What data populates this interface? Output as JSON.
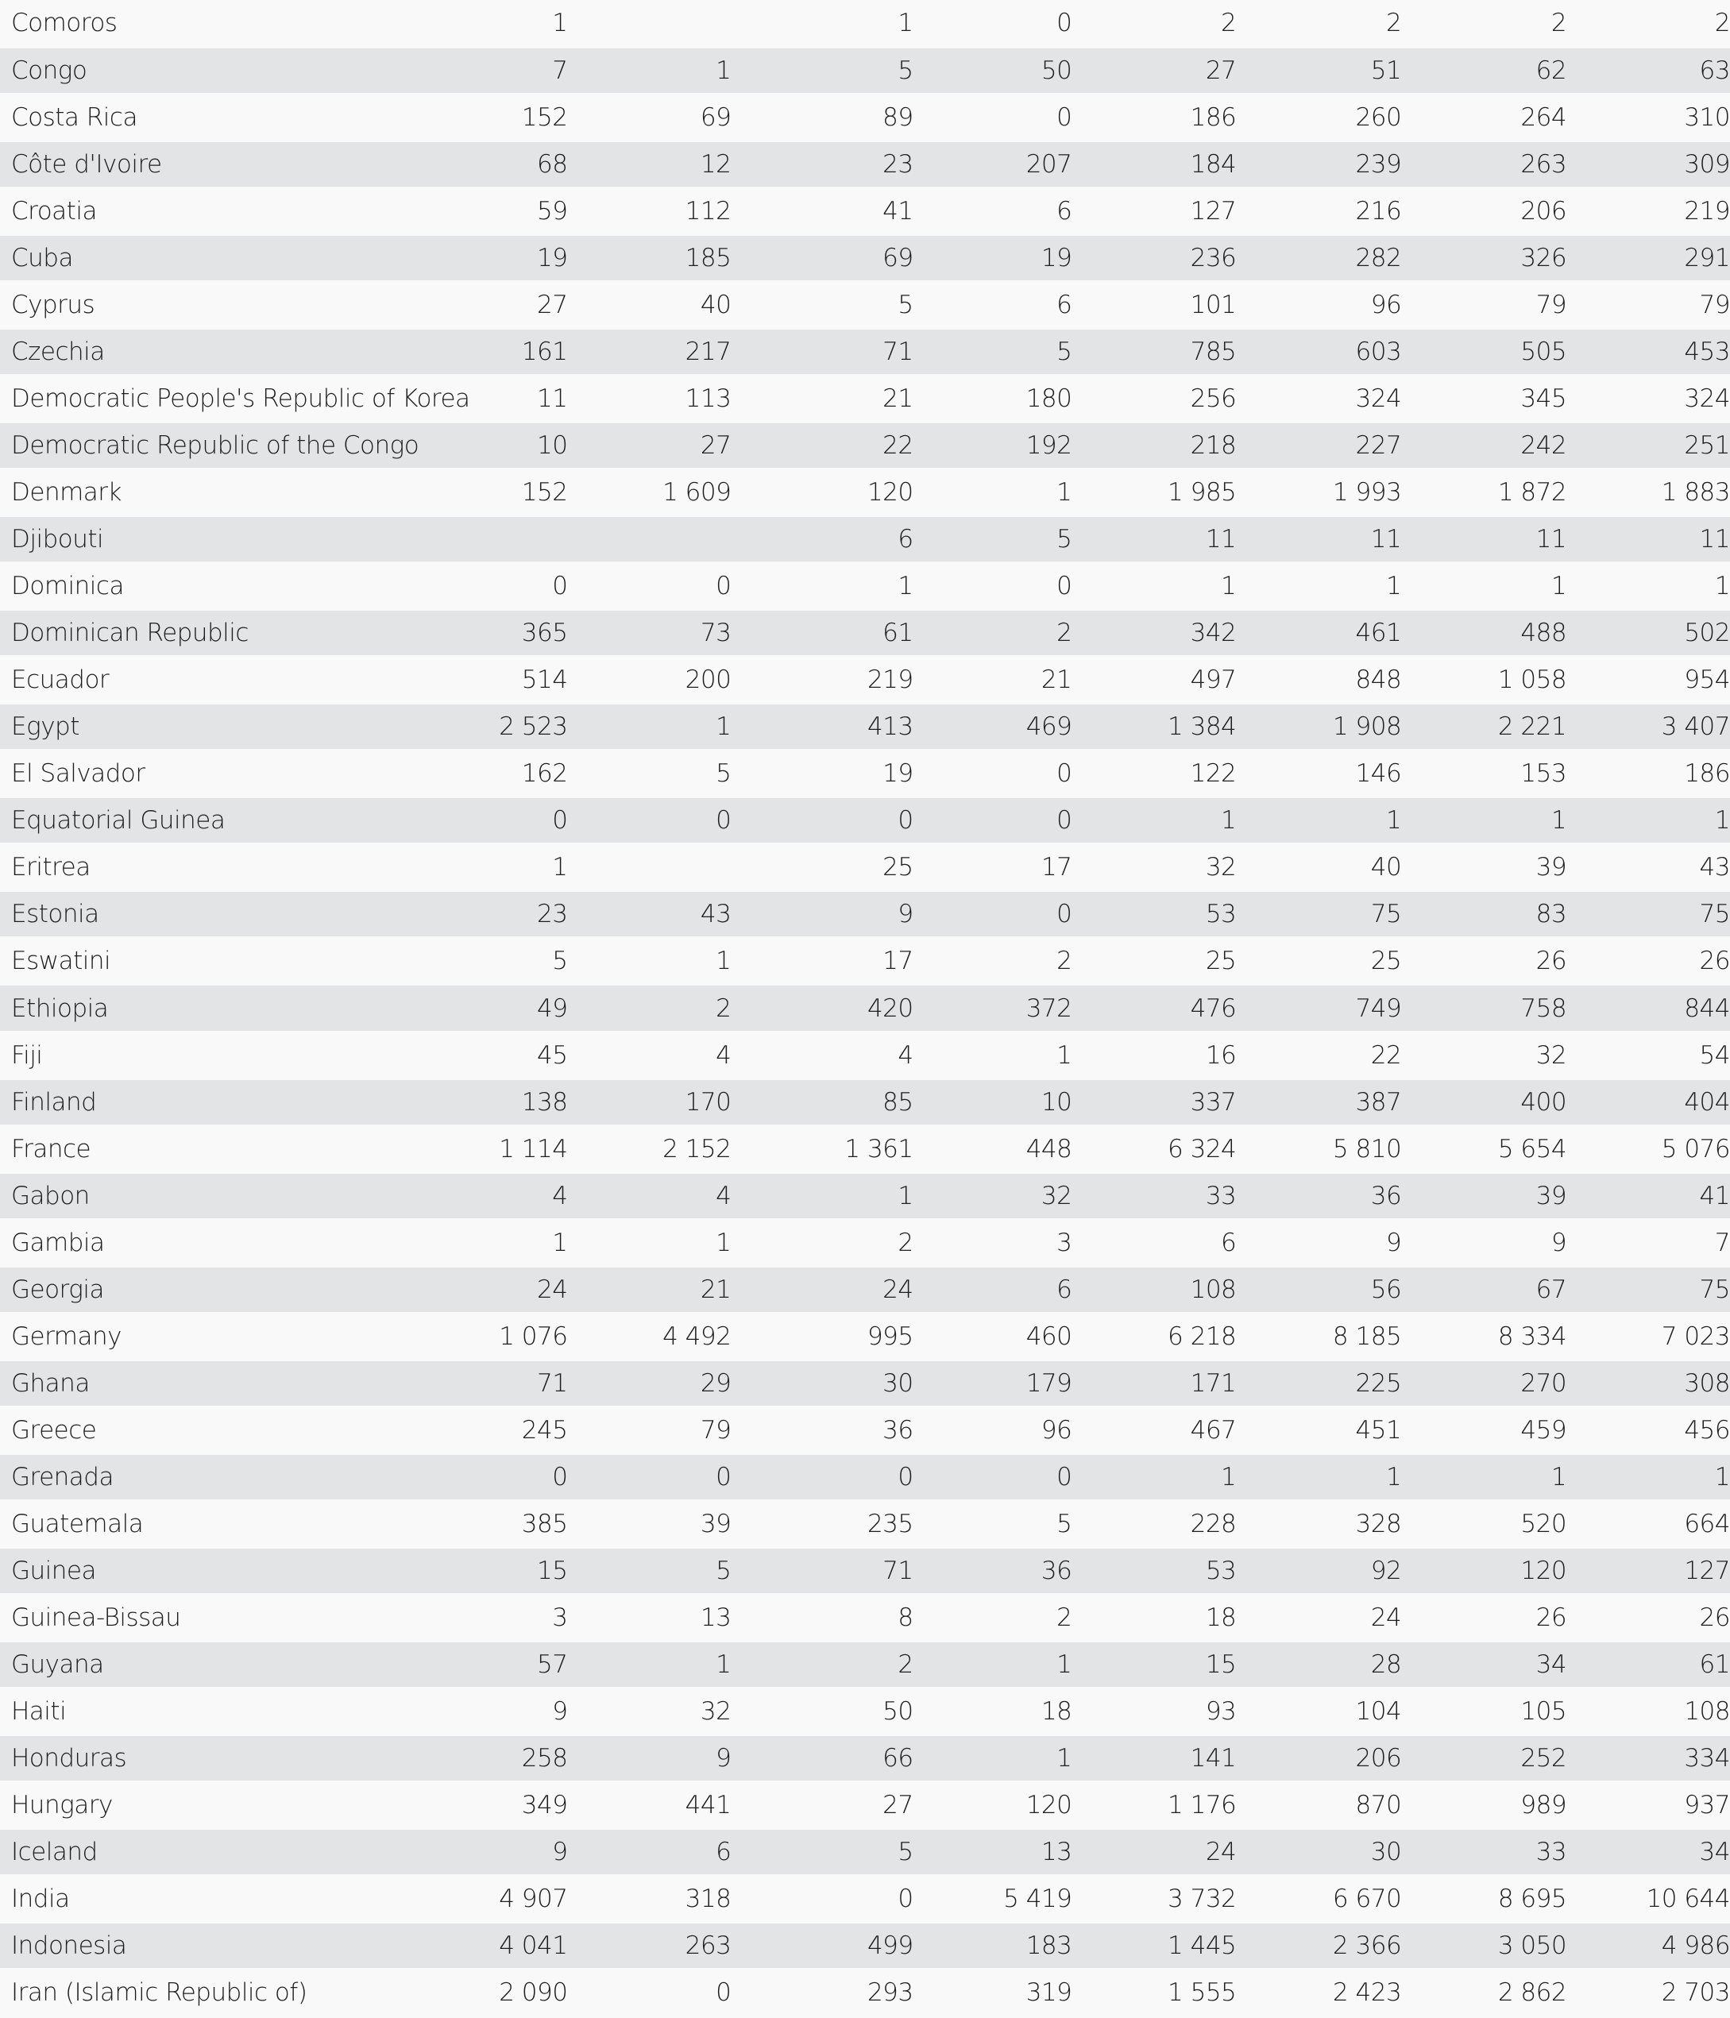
{
  "table": {
    "rows": [
      [
        "Comoros",
        "1",
        "",
        "1",
        "0",
        "2",
        "2",
        "2",
        "2"
      ],
      [
        "Congo",
        "7",
        "1",
        "5",
        "50",
        "27",
        "51",
        "62",
        "63"
      ],
      [
        "Costa Rica",
        "152",
        "69",
        "89",
        "0",
        "186",
        "260",
        "264",
        "310"
      ],
      [
        "Côte d'Ivoire",
        "68",
        "12",
        "23",
        "207",
        "184",
        "239",
        "263",
        "309"
      ],
      [
        "Croatia",
        "59",
        "112",
        "41",
        "6",
        "127",
        "216",
        "206",
        "219"
      ],
      [
        "Cuba",
        "19",
        "185",
        "69",
        "19",
        "236",
        "282",
        "326",
        "291"
      ],
      [
        "Cyprus",
        "27",
        "40",
        "5",
        "6",
        "101",
        "96",
        "79",
        "79"
      ],
      [
        "Czechia",
        "161",
        "217",
        "71",
        "5",
        "785",
        "603",
        "505",
        "453"
      ],
      [
        "Democratic People's Republic of Korea",
        "11",
        "113",
        "21",
        "180",
        "256",
        "324",
        "345",
        "324"
      ],
      [
        "Democratic Republic of the Congo",
        "10",
        "27",
        "22",
        "192",
        "218",
        "227",
        "242",
        "251"
      ],
      [
        "Denmark",
        "152",
        "1 609",
        "120",
        "1",
        "1 985",
        "1 993",
        "1 872",
        "1 883"
      ],
      [
        "Djibouti",
        "",
        "",
        "6",
        "5",
        "11",
        "11",
        "11",
        "11"
      ],
      [
        "Dominica",
        "0",
        "0",
        "1",
        "0",
        "1",
        "1",
        "1",
        "1"
      ],
      [
        "Dominican Republic",
        "365",
        "73",
        "61",
        "2",
        "342",
        "461",
        "488",
        "502"
      ],
      [
        "Ecuador",
        "514",
        "200",
        "219",
        "21",
        "497",
        "848",
        "1 058",
        "954"
      ],
      [
        "Egypt",
        "2 523",
        "1",
        "413",
        "469",
        "1 384",
        "1 908",
        "2 221",
        "3 407"
      ],
      [
        "El Salvador",
        "162",
        "5",
        "19",
        "0",
        "122",
        "146",
        "153",
        "186"
      ],
      [
        "Equatorial Guinea",
        "0",
        "0",
        "0",
        "0",
        "1",
        "1",
        "1",
        "1"
      ],
      [
        "Eritrea",
        "1",
        "",
        "25",
        "17",
        "32",
        "40",
        "39",
        "43"
      ],
      [
        "Estonia",
        "23",
        "43",
        "9",
        "0",
        "53",
        "75",
        "83",
        "75"
      ],
      [
        "Eswatini",
        "5",
        "1",
        "17",
        "2",
        "25",
        "25",
        "26",
        "26"
      ],
      [
        "Ethiopia",
        "49",
        "2",
        "420",
        "372",
        "476",
        "749",
        "758",
        "844"
      ],
      [
        "Fiji",
        "45",
        "4",
        "4",
        "1",
        "16",
        "22",
        "32",
        "54"
      ],
      [
        "Finland",
        "138",
        "170",
        "85",
        "10",
        "337",
        "387",
        "400",
        "404"
      ],
      [
        "France",
        "1 114",
        "2 152",
        "1 361",
        "448",
        "6 324",
        "5 810",
        "5 654",
        "5 076"
      ],
      [
        "Gabon",
        "4",
        "4",
        "1",
        "32",
        "33",
        "36",
        "39",
        "41"
      ],
      [
        "Gambia",
        "1",
        "1",
        "2",
        "3",
        "6",
        "9",
        "9",
        "7"
      ],
      [
        "Georgia",
        "24",
        "21",
        "24",
        "6",
        "108",
        "56",
        "67",
        "75"
      ],
      [
        "Germany",
        "1 076",
        "4 492",
        "995",
        "460",
        "6 218",
        "8 185",
        "8 334",
        "7 023"
      ],
      [
        "Ghana",
        "71",
        "29",
        "30",
        "179",
        "171",
        "225",
        "270",
        "308"
      ],
      [
        "Greece",
        "245",
        "79",
        "36",
        "96",
        "467",
        "451",
        "459",
        "456"
      ],
      [
        "Grenada",
        "0",
        "0",
        "0",
        "0",
        "1",
        "1",
        "1",
        "1"
      ],
      [
        "Guatemala",
        "385",
        "39",
        "235",
        "5",
        "228",
        "328",
        "520",
        "664"
      ],
      [
        "Guinea",
        "15",
        "5",
        "71",
        "36",
        "53",
        "92",
        "120",
        "127"
      ],
      [
        "Guinea-Bissau",
        "3",
        "13",
        "8",
        "2",
        "18",
        "24",
        "26",
        "26"
      ],
      [
        "Guyana",
        "57",
        "1",
        "2",
        "1",
        "15",
        "28",
        "34",
        "61"
      ],
      [
        "Haiti",
        "9",
        "32",
        "50",
        "18",
        "93",
        "104",
        "105",
        "108"
      ],
      [
        "Honduras",
        "258",
        "9",
        "66",
        "1",
        "141",
        "206",
        "252",
        "334"
      ],
      [
        "Hungary",
        "349",
        "441",
        "27",
        "120",
        "1 176",
        "870",
        "989",
        "937"
      ],
      [
        "Iceland",
        "9",
        "6",
        "5",
        "13",
        "24",
        "30",
        "33",
        "34"
      ],
      [
        "India",
        "4 907",
        "318",
        "0",
        "5 419",
        "3 732",
        "6 670",
        "8 695",
        "10 644"
      ],
      [
        "Indonesia",
        "4 041",
        "263",
        "499",
        "183",
        "1 445",
        "2 366",
        "3 050",
        "4 986"
      ],
      [
        "Iran (Islamic Republic of)",
        "2 090",
        "0",
        "293",
        "319",
        "1 555",
        "2 423",
        "2 862",
        "2 703"
      ]
    ]
  },
  "colors": {
    "row_light": "#f9f9f9",
    "row_shaded": "#e3e4e6",
    "text": "#1e1e1e"
  }
}
